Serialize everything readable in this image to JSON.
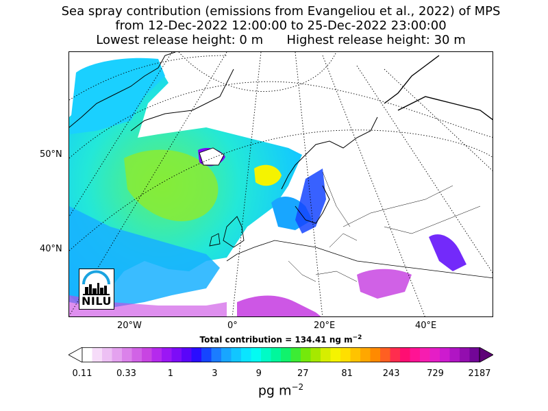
{
  "title": {
    "line1": "Sea spray contribution (emissions from Evangeliou et al., 2022) of MPS",
    "line2": "from 12-Dec-2022 12:00:00 to 25-Dec-2022 23:00:00",
    "line3": "Lowest release height: 0 m      Highest release height: 30 m"
  },
  "axes": {
    "lat_labels": [
      "50°N",
      "40°N"
    ],
    "lon_labels": [
      "20°W",
      "0°",
      "20°E",
      "40°E"
    ]
  },
  "total_contribution": "Total contribution = 134.41 ng m",
  "total_contribution_exp": "−2",
  "colorbar": {
    "ticks": [
      "0.11",
      "0.33",
      "1",
      "3",
      "9",
      "27",
      "81",
      "243",
      "729",
      "2187"
    ],
    "units": "pg m",
    "units_exp": "−2",
    "colors": [
      "#ffffff",
      "#f6dcf9",
      "#edc0f4",
      "#e4a2ef",
      "#db82ea",
      "#d163e6",
      "#c845e2",
      "#b52aed",
      "#9b17f4",
      "#7d0cf7",
      "#5a05f9",
      "#2a0dff",
      "#1545ff",
      "#1b7cff",
      "#18a6ff",
      "#12c6ff",
      "#0ae4ff",
      "#03fbf2",
      "#00fbc6",
      "#00f79c",
      "#11f26c",
      "#3cec34",
      "#74e90b",
      "#a6e800",
      "#d6ee00",
      "#f5f300",
      "#ffdf00",
      "#ffc300",
      "#ffa700",
      "#ff8a00",
      "#ff5f22",
      "#ff2d4e",
      "#ff0e72",
      "#ff1394",
      "#f61db0",
      "#e51ec6",
      "#cd1bcf",
      "#b015c4",
      "#930eaf",
      "#720697"
    ]
  },
  "logo": {
    "text": "NILU",
    "accent": "#1aa3e0"
  }
}
